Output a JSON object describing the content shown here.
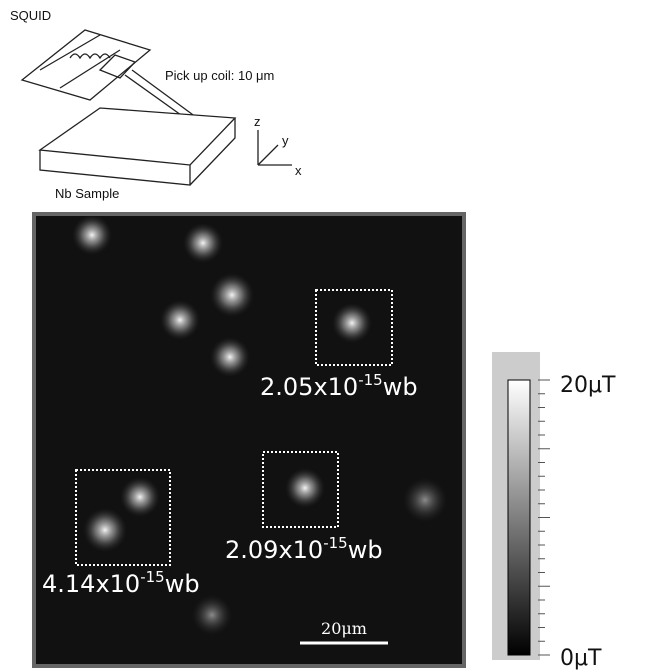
{
  "squid_label": "SQUID",
  "pickup_label": "Pick up coil: 10 μm",
  "axes": {
    "z": "z",
    "y": "y",
    "x": "x"
  },
  "sample_label": "Nb Sample",
  "annotations": [
    {
      "base": "2.05x10",
      "exponent": "-15",
      "unit": "wb"
    },
    {
      "base": "2.09x10",
      "exponent": "-15",
      "unit": "wb"
    },
    {
      "base": "4.14x10",
      "exponent": "-15",
      "unit": "wb"
    }
  ],
  "scale_bar": "20μm",
  "colorbar": {
    "max_label": "20μT",
    "min_label": "0μT"
  }
}
